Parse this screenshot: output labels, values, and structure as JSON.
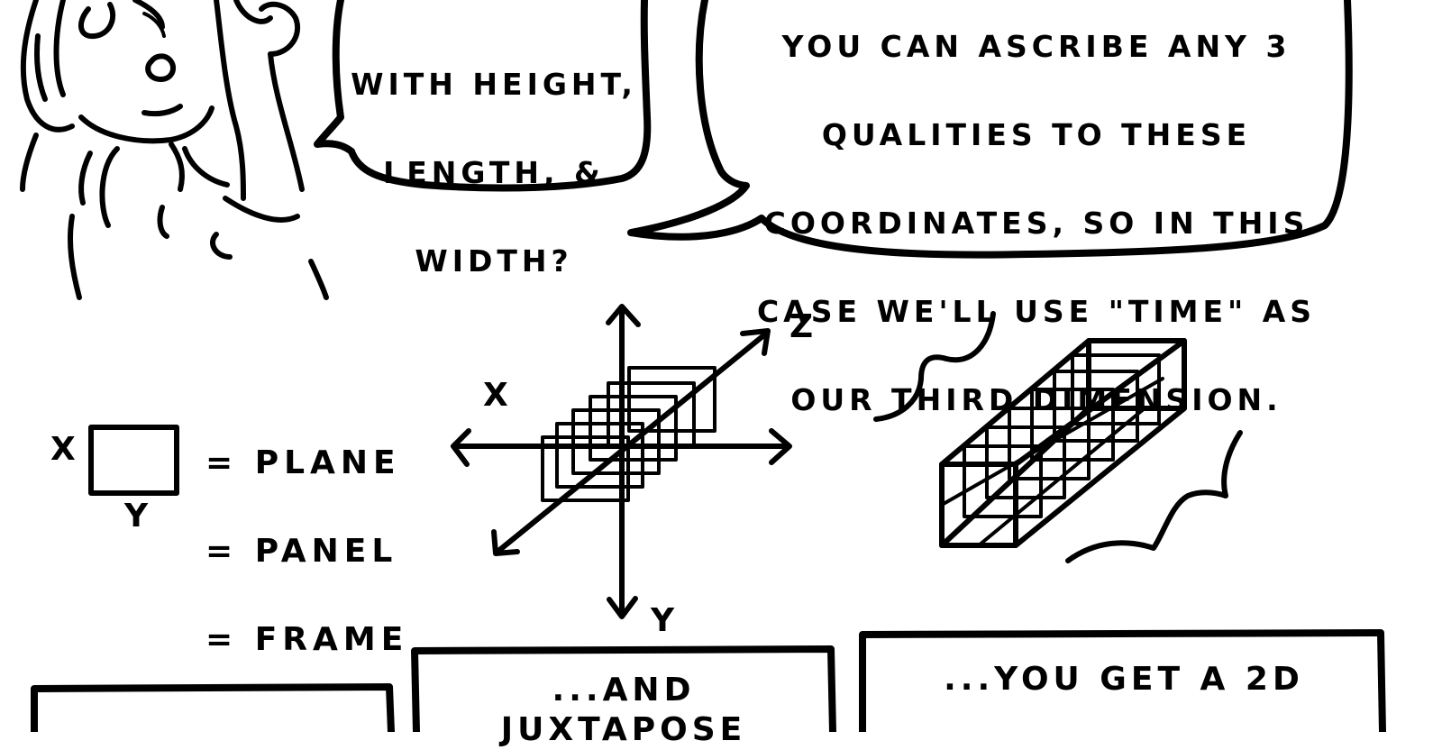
{
  "bubbles": {
    "left": {
      "lines": [
        "WITH HEIGHT,",
        "LENGTH, &",
        "WIDTH?"
      ]
    },
    "right": {
      "lines": [
        "YOU CAN ASCRIBE ANY 3",
        "QUALITIES TO THESE",
        "COORDINATES, SO IN THIS",
        "CASE WE'LL USE \"TIME\" AS",
        "OUR THIRD DIMENSION."
      ]
    }
  },
  "legend": {
    "axis_x": "X",
    "axis_y": "Y",
    "items": [
      "= PLANE",
      "= PANEL",
      "= FRAME"
    ]
  },
  "axes_diagram": {
    "x": "X",
    "y": "Y",
    "z": "Z"
  },
  "captions": {
    "middle": "...AND JUXTAPOSE",
    "right": "...YOU GET A 2D"
  }
}
